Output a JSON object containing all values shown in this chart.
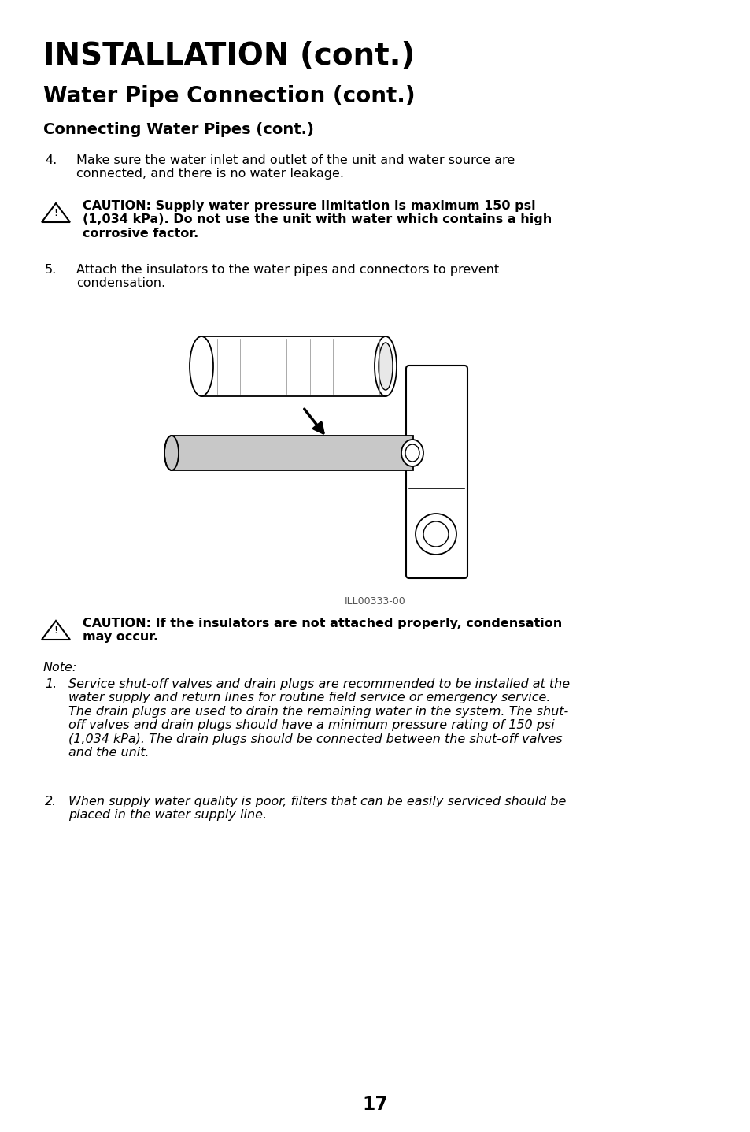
{
  "title1": "INSTALLATION (cont.)",
  "title2": "Water Pipe Connection (cont.)",
  "title3": "Connecting Water Pipes (cont.)",
  "item4_label": "4.",
  "item4_text": "Make sure the water inlet and outlet of the unit and water source are\nconnected, and there is no water leakage.",
  "caution1_text": "CAUTION: Supply water pressure limitation is maximum 150 psi\n(1,034 kPa). Do not use the unit with water which contains a high\ncorrosive factor.",
  "item5_label": "5.",
  "item5_text": "Attach the insulators to the water pipes and connectors to prevent\ncondensation.",
  "ill_label": "ILL00333-00",
  "caution2_text": "CAUTION: If the insulators are not attached properly, condensation\nmay occur.",
  "note_label": "Note:",
  "note1_label": "1.",
  "note1_text": "Service shut-off valves and drain plugs are recommended to be installed at the\nwater supply and return lines for routine field service or emergency service.\nThe drain plugs are used to drain the remaining water in the system. The shut-\noff valves and drain plugs should have a minimum pressure rating of 150 psi\n(1,034 kPa). The drain plugs should be connected between the shut-off valves\nand the unit.",
  "note2_label": "2.",
  "note2_text": "When supply water quality is poor, filters that can be easily serviced should be\nplaced in the water supply line.",
  "page_number": "17",
  "bg_color": "#ffffff",
  "text_color": "#000000",
  "lm": 0.058,
  "indent": 0.042,
  "t1_fs": 28,
  "t2_fs": 20,
  "t3_fs": 14,
  "body_fs": 11.5
}
